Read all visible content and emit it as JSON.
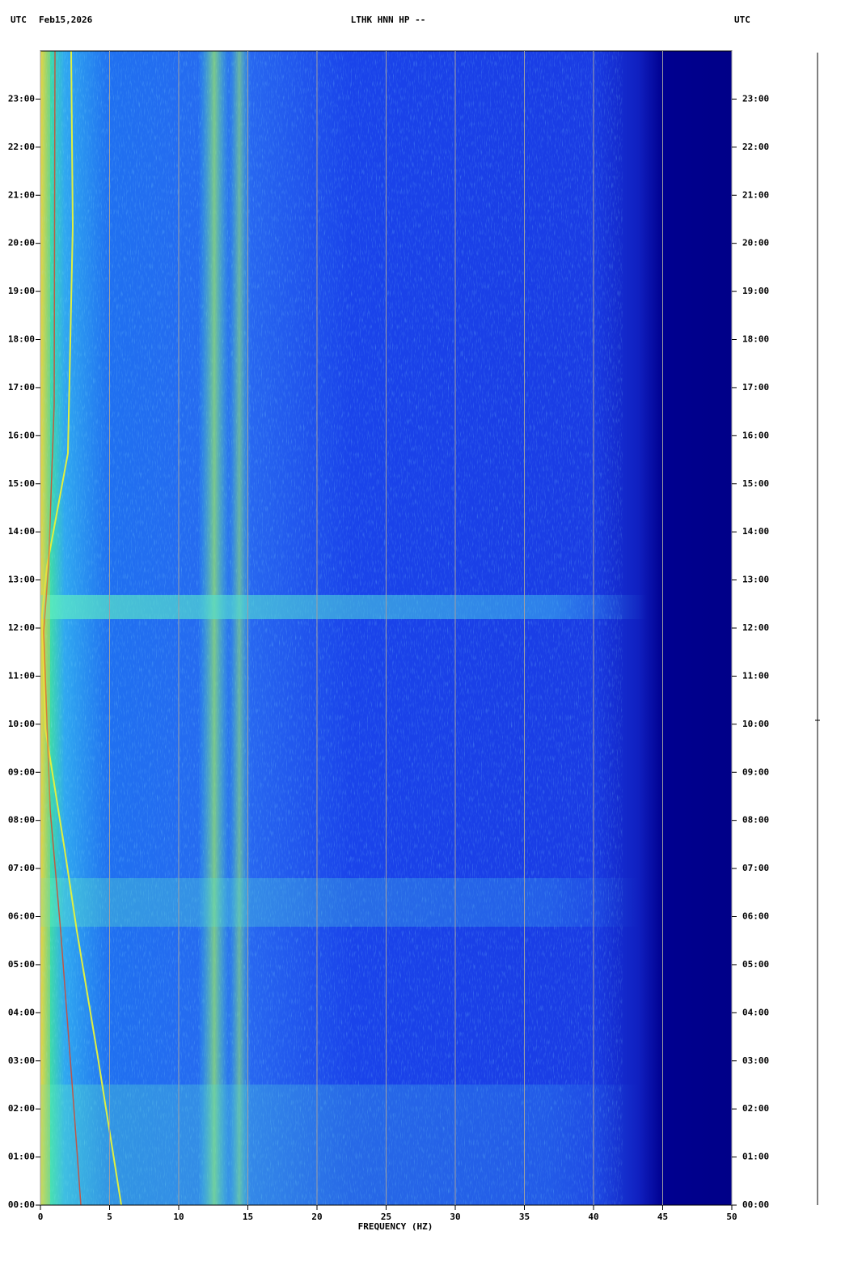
{
  "chart_data": {
    "type": "spectrogram",
    "timezone_left": "UTC",
    "date": "Feb15,2026",
    "title": "LTHK HNN HP --",
    "timezone_right": "UTC",
    "xlabel": "FREQUENCY (HZ)",
    "xlim": [
      0,
      50
    ],
    "xticks": [
      0,
      5,
      10,
      15,
      20,
      25,
      30,
      35,
      40,
      45,
      50
    ],
    "ylim": [
      0,
      24
    ],
    "yticks": [
      {
        "value": 0,
        "label": "00:00"
      },
      {
        "value": 1,
        "label": "01:00"
      },
      {
        "value": 2,
        "label": "02:00"
      },
      {
        "value": 3,
        "label": "03:00"
      },
      {
        "value": 4,
        "label": "04:00"
      },
      {
        "value": 5,
        "label": "05:00"
      },
      {
        "value": 6,
        "label": "06:00"
      },
      {
        "value": 7,
        "label": "07:00"
      },
      {
        "value": 8,
        "label": "08:00"
      },
      {
        "value": 9,
        "label": "09:00"
      },
      {
        "value": 10,
        "label": "10:00"
      },
      {
        "value": 11,
        "label": "11:00"
      },
      {
        "value": 12,
        "label": "12:00"
      },
      {
        "value": 13,
        "label": "13:00"
      },
      {
        "value": 14,
        "label": "14:00"
      },
      {
        "value": 15,
        "label": "15:00"
      },
      {
        "value": 16,
        "label": "16:00"
      },
      {
        "value": 17,
        "label": "17:00"
      },
      {
        "value": 18,
        "label": "18:00"
      },
      {
        "value": 19,
        "label": "19:00"
      },
      {
        "value": 20,
        "label": "20:00"
      },
      {
        "value": 21,
        "label": "21:00"
      },
      {
        "value": 22,
        "label": "22:00"
      },
      {
        "value": 23,
        "label": "23:00"
      }
    ],
    "grid": true
  }
}
